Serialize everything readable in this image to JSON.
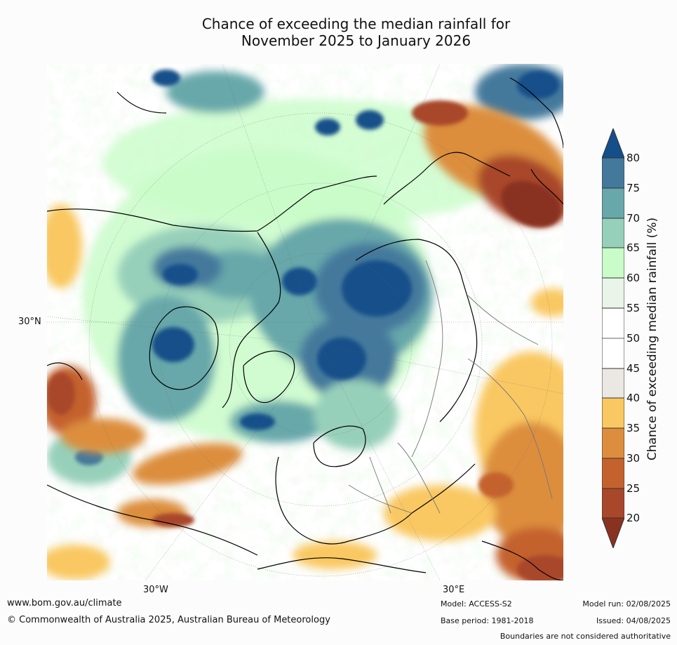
{
  "title": {
    "line1": "Chance of exceeding the median rainfall for",
    "line2": "November 2025 to January 2026"
  },
  "map": {
    "lat_label": "30°N",
    "lon_labels": [
      "30°W",
      "30°E"
    ]
  },
  "colorbar": {
    "label": "Chance of exceeding median rainfall (%)",
    "ticks": [
      "20",
      "25",
      "30",
      "35",
      "40",
      "45",
      "50",
      "55",
      "60",
      "65",
      "70",
      "75",
      "80"
    ],
    "colors": {
      "below20": "#8a3220",
      "20_25": "#a9472a",
      "25_30": "#c4622e",
      "30_35": "#dc8e3e",
      "35_40": "#f9c862",
      "40_45": "#ebe7e2",
      "45_55": "#ffffff",
      "55_60": "#eaf5ea",
      "60_65": "#c9fcc9",
      "65_70": "#97d0ba",
      "70_75": "#68a8aa",
      "75_80": "#44799c",
      "above80": "#144f8a"
    }
  },
  "footer": {
    "website": "www.bom.gov.au/climate",
    "copyright": "© Commonwealth of Australia 2025, Australian Bureau of Meteorology",
    "model": "Model: ACCESS-S2",
    "base_period": "Base period: 1981-2018",
    "model_run": "Model run: 02/08/2025",
    "issued": "Issued: 04/08/2025",
    "disclaimer": "Boundaries are not considered authoritative"
  }
}
